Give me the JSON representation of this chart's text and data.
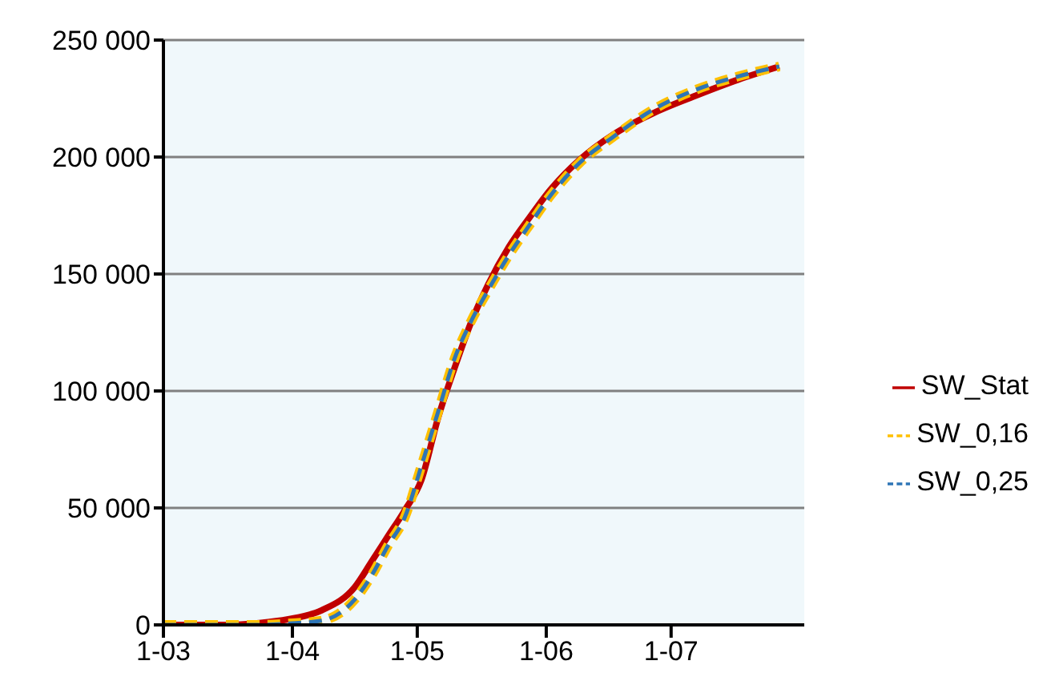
{
  "chart_data": {
    "type": "line",
    "x": [
      "--03-01",
      "--03-16",
      "--03-24",
      "--03-31",
      "--04-08",
      "--04-16",
      "--04-20",
      "--04-24",
      "--04-28",
      "--05-02",
      "--05-06",
      "--05-10",
      "--05-14",
      "--05-18",
      "--05-23",
      "--05-28",
      "--06-02",
      "--06-09",
      "--06-17",
      "--06-27",
      "--07-07",
      "--07-17",
      "--07-27"
    ],
    "series": [
      {
        "name": "SW_Stat",
        "color": "#c00000",
        "line_style": "solid",
        "values": [
          0,
          0,
          800,
          2400,
          6200,
          16200,
          27000,
          38000,
          49000,
          62000,
          88500,
          110000,
          129600,
          145400,
          161500,
          174200,
          186000,
          198800,
          209500,
          219000,
          226300,
          233000,
          238700
        ]
      },
      {
        "name": "SW_0,16",
        "color": "#ffc000",
        "line_style": "dashed",
        "values": [
          0,
          0,
          0,
          600,
          1800,
          10900,
          21000,
          34000,
          46000,
          68000,
          91000,
          114000,
          130000,
          143000,
          158000,
          171000,
          183500,
          197500,
          208500,
          220600,
          228800,
          234400,
          238700
        ]
      },
      {
        "name": "SW_0,25",
        "color": "#2e75b6",
        "line_style": "dashed",
        "values": [
          0,
          0,
          0,
          600,
          1800,
          10900,
          21000,
          34000,
          46000,
          68000,
          91000,
          114000,
          130000,
          143000,
          158000,
          171000,
          183500,
          197500,
          208500,
          220600,
          228800,
          234400,
          238700
        ]
      }
    ],
    "xlim": [
      "--03-01",
      "--08-02"
    ],
    "xticks": [
      {
        "value": "--03-01",
        "label": "1-03"
      },
      {
        "value": "--04-01",
        "label": "1-04"
      },
      {
        "value": "--05-01",
        "label": "1-05"
      },
      {
        "value": "--06-01",
        "label": "1-06"
      },
      {
        "value": "--07-01",
        "label": "1-07"
      }
    ],
    "ylim": [
      0,
      250000
    ],
    "yticks": [
      0,
      {
        "value": 50000,
        "label": "50 000"
      },
      {
        "value": 100000,
        "label": "100 000"
      },
      {
        "value": 150000,
        "label": "150 000"
      },
      {
        "value": 200000,
        "label": "200 000"
      },
      {
        "value": 250000,
        "label": "250 000"
      }
    ],
    "grid": "y",
    "legend": "right",
    "marker": "none"
  }
}
